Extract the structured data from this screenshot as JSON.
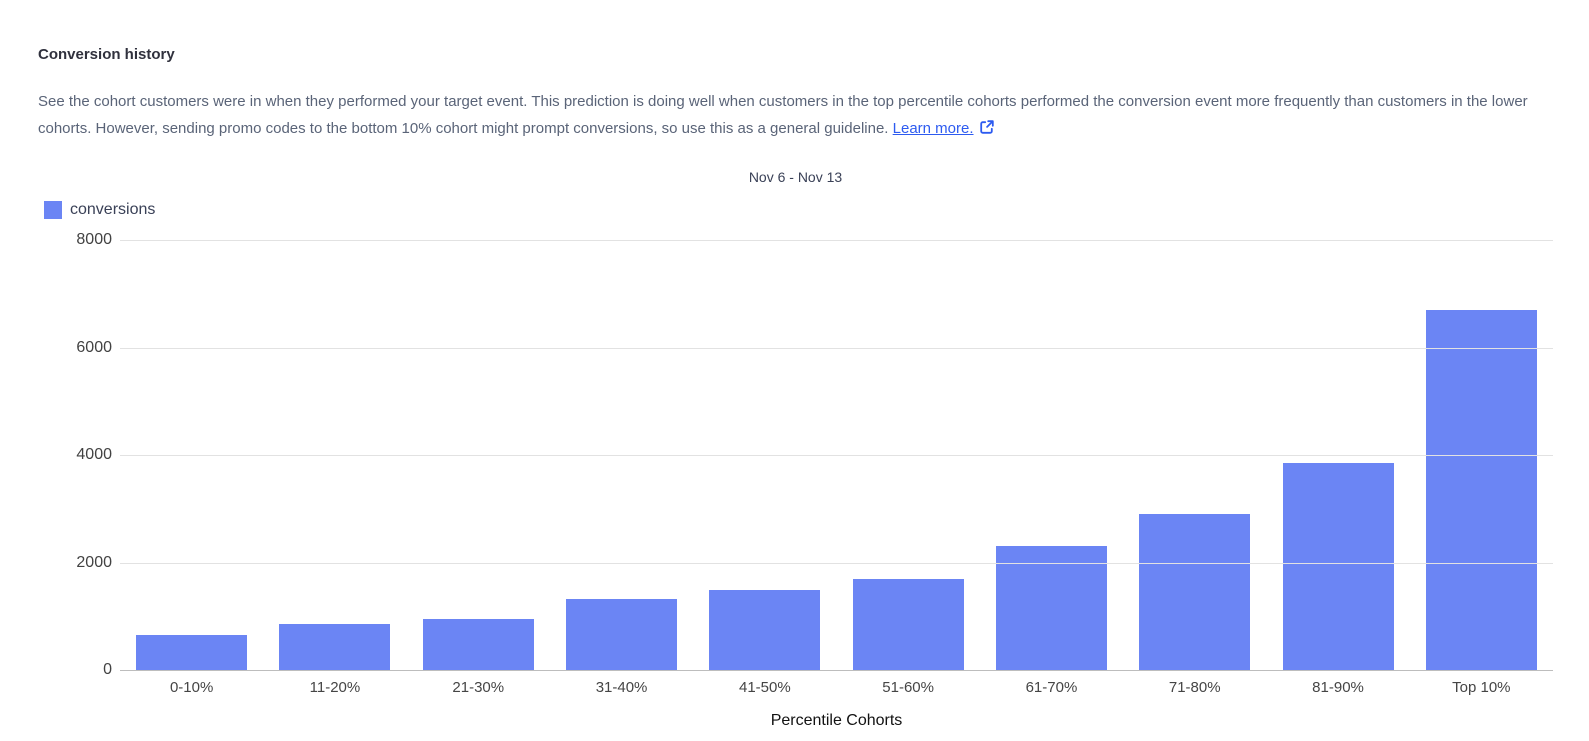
{
  "panel": {
    "title": "Conversion history",
    "description": "See the cohort customers were in when they performed your target event. This prediction is doing well when customers in the top percentile cohorts performed the conversion event more frequently than customers in the lower cohorts. However, sending promo codes to the bottom 10% cohort might prompt conversions, so use this as a general guideline.",
    "learn_more_label": "Learn more.",
    "learn_more_icon": "external-link-icon"
  },
  "chart_data": {
    "type": "bar",
    "title": "Nov 6 - Nov 13",
    "xlabel": "Percentile Cohorts",
    "ylabel": "",
    "categories": [
      "0-10%",
      "11-20%",
      "21-30%",
      "31-40%",
      "41-50%",
      "51-60%",
      "61-70%",
      "71-80%",
      "81-90%",
      "Top 10%"
    ],
    "series": [
      {
        "name": "conversions",
        "values": [
          650,
          860,
          940,
          1320,
          1480,
          1700,
          2310,
          2900,
          3850,
          6700
        ]
      }
    ],
    "ylim": [
      0,
      8000
    ],
    "y_ticks": [
      0,
      2000,
      4000,
      6000,
      8000
    ],
    "grid": true,
    "legend_position": "top-left",
    "legend": [
      {
        "label": "conversions",
        "color": "#6b85f4"
      }
    ]
  },
  "colors": {
    "bar": "#6b85f4",
    "link": "#2d5bf0",
    "gridline": "#e2e2e2",
    "baseline": "#bdbdbd",
    "title_text": "#30313d",
    "body_text": "#5a6478",
    "tick_text": "#424242"
  }
}
